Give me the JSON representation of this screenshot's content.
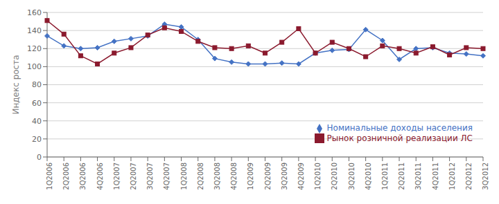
{
  "chart_data": {
    "type": "line",
    "ylabel": "Индекс роста",
    "categories": [
      "1Q2006",
      "2Q2006",
      "3Q2006",
      "4Q2006",
      "1Q2007",
      "2Q2007",
      "3Q2007",
      "4Q2007",
      "1Q2008",
      "2Q2008",
      "3Q2008",
      "4Q2008",
      "1Q2009",
      "2Q2009",
      "3Q2009",
      "4Q2009",
      "1Q2010",
      "2Q2010",
      "3Q2010",
      "4Q2010",
      "1Q2011",
      "2Q2011",
      "3Q2011",
      "4Q2011",
      "1Q2012",
      "2Q2012",
      "3Q2012"
    ],
    "series": [
      {
        "name": "Номинальные доходы населения",
        "color": "#4472c4",
        "marker": "diamond",
        "values": [
          134,
          123,
          120,
          121,
          128,
          131,
          134,
          147,
          144,
          130,
          109,
          105,
          103,
          103,
          104,
          103,
          115,
          118,
          119,
          141,
          129,
          108,
          120,
          121,
          115,
          114,
          112
        ]
      },
      {
        "name": "Рынок розничной реализации ЛС",
        "color": "#8b1a2e",
        "marker": "square",
        "values": [
          151,
          136,
          112,
          103,
          115,
          121,
          135,
          143,
          139,
          128,
          121,
          120,
          123,
          115,
          127,
          142,
          115,
          127,
          120,
          111,
          123,
          120,
          115,
          122,
          113,
          121,
          120
        ]
      }
    ],
    "ylim": [
      0,
      160
    ],
    "yticks": [
      0,
      20,
      40,
      60,
      80,
      100,
      120,
      140,
      160
    ],
    "grid": true,
    "legend": "lower right"
  }
}
